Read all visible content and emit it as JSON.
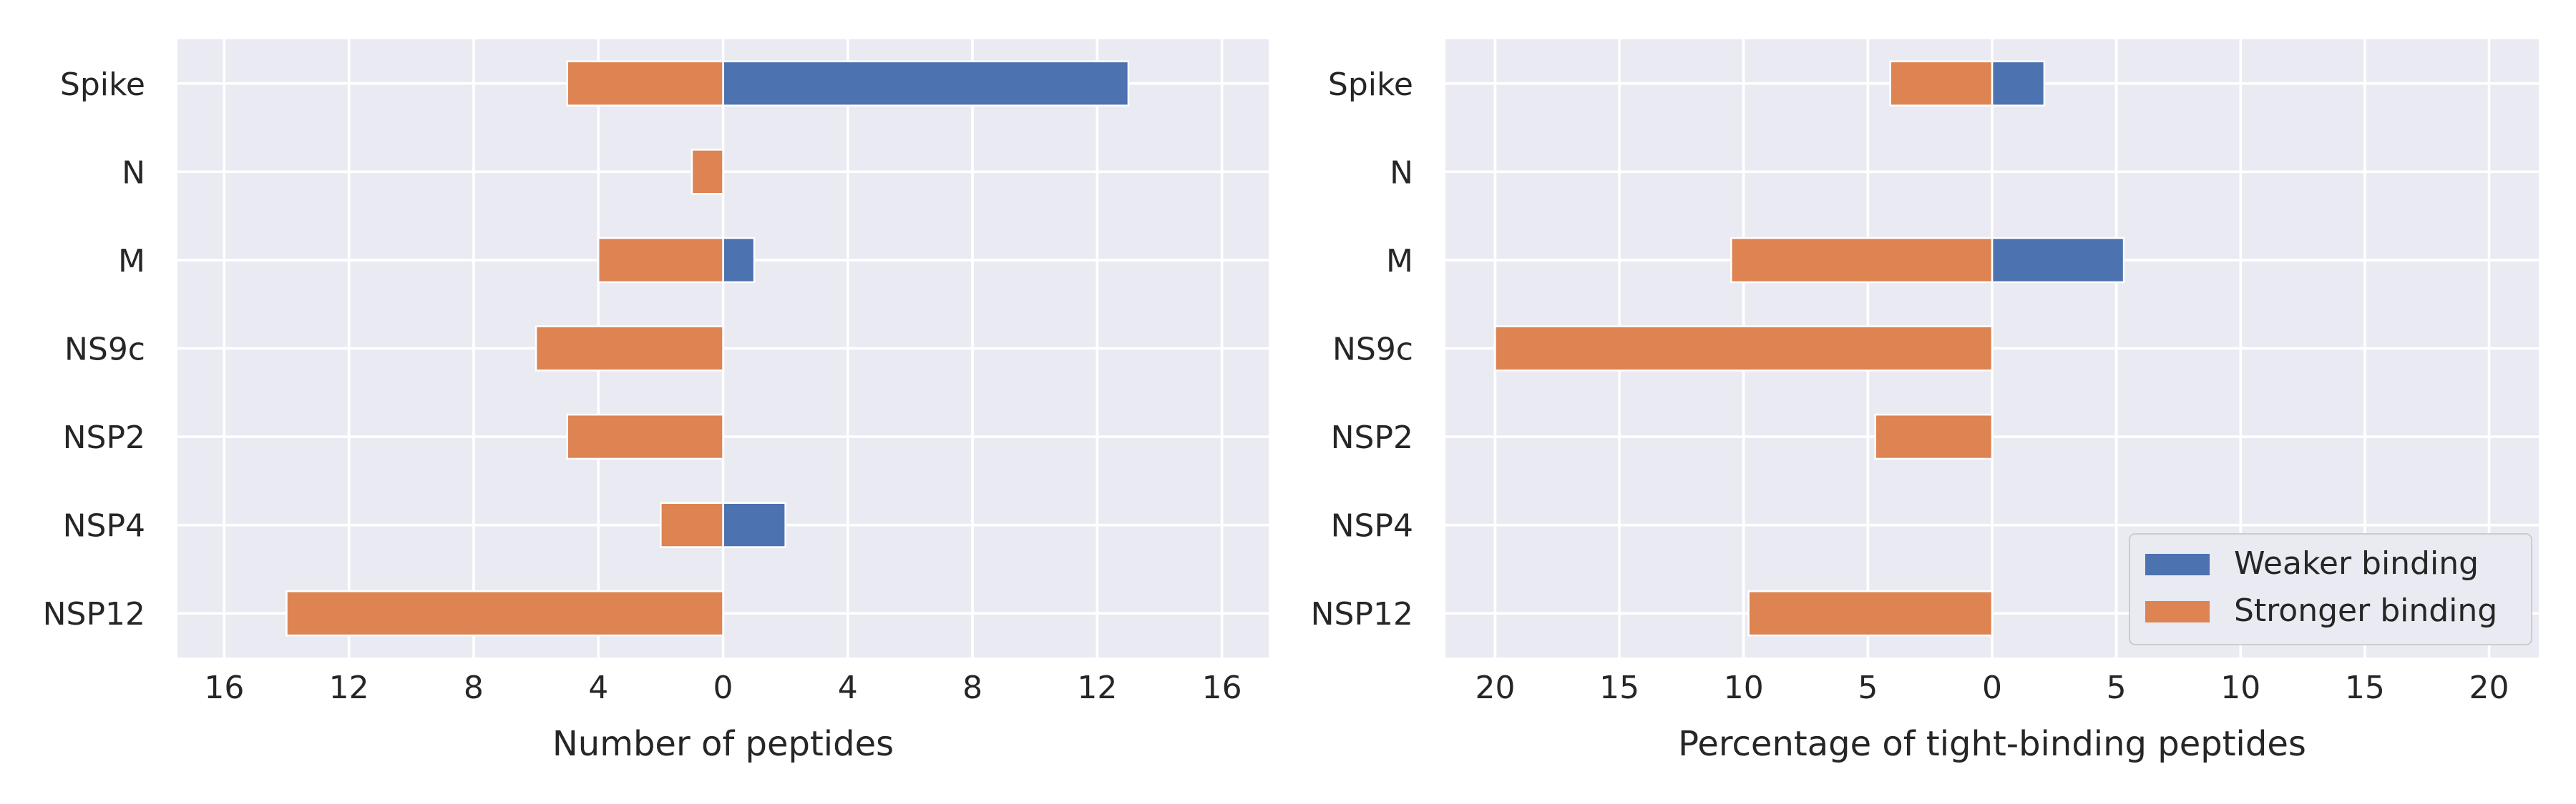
{
  "chart_data": [
    {
      "type": "bar",
      "orientation": "horizontal",
      "categories": [
        "Spike",
        "N",
        "M",
        "NS9c",
        "NSP2",
        "NSP4",
        "NSP12"
      ],
      "series": [
        {
          "name": "Weaker binding",
          "color": "#4c72b0",
          "values": [
            13,
            0,
            1,
            0,
            0,
            2,
            0
          ]
        },
        {
          "name": "Stronger binding",
          "color": "#dd8452",
          "values": [
            5,
            1,
            4,
            6,
            5,
            2,
            14
          ]
        }
      ],
      "xlabel": "Number of peptides",
      "xlim": [
        -17.5,
        17.5
      ],
      "x_ticks": [
        -16,
        -12,
        -8,
        -4,
        0,
        4,
        8,
        12,
        16
      ],
      "x_tick_labels": [
        "16",
        "12",
        "8",
        "4",
        "0",
        "4",
        "8",
        "12",
        "16"
      ],
      "grid": true
    },
    {
      "type": "bar",
      "orientation": "horizontal",
      "categories": [
        "Spike",
        "N",
        "M",
        "NS9c",
        "NSP2",
        "NSP4",
        "NSP12"
      ],
      "series": [
        {
          "name": "Weaker binding",
          "color": "#4c72b0",
          "values": [
            2.1,
            0,
            5.3,
            0,
            0,
            0,
            0
          ]
        },
        {
          "name": "Stronger binding",
          "color": "#dd8452",
          "values": [
            4.1,
            0,
            10.5,
            20,
            4.7,
            0,
            9.8
          ]
        }
      ],
      "xlabel": "Percentage of tight-binding peptides",
      "xlim": [
        -22,
        22
      ],
      "x_ticks": [
        -20,
        -15,
        -10,
        -5,
        0,
        5,
        10,
        15,
        20
      ],
      "x_tick_labels": [
        "20",
        "15",
        "10",
        "5",
        "0",
        "5",
        "10",
        "15",
        "20"
      ],
      "grid": true,
      "legend": {
        "placement": "lower-right",
        "entries": [
          "Weaker binding",
          "Stronger binding"
        ]
      }
    }
  ]
}
